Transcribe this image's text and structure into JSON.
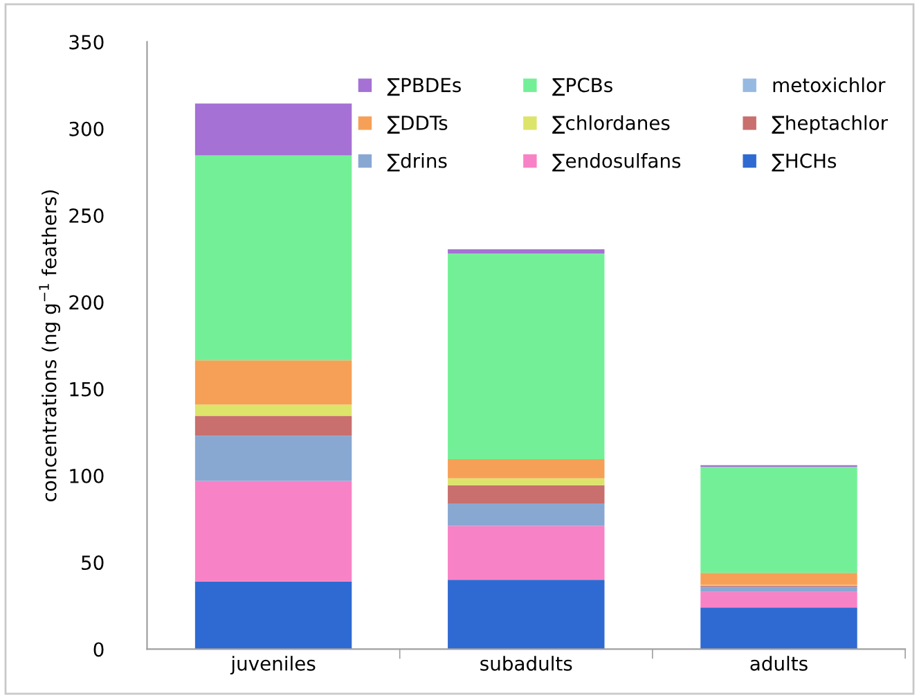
{
  "chart_data": {
    "type": "bar",
    "stacked": true,
    "ylabel": "concentrations (ng g$^{−1}$ feathers)",
    "categories": [
      "juveniles",
      "subadults",
      "adults"
    ],
    "ylim": [
      0,
      350
    ],
    "yticks": [
      0,
      50,
      100,
      150,
      200,
      250,
      300,
      350
    ],
    "grid": false,
    "legend": "top right",
    "series": [
      {
        "name": "∑HCHs",
        "color": "#2f6ad2",
        "values": [
          39,
          40,
          24
        ]
      },
      {
        "name": "∑endosulfans",
        "color": "#f882c6",
        "values": [
          58,
          31,
          9
        ]
      },
      {
        "name": "∑drins",
        "color": "#88a8d2",
        "values": [
          26,
          13,
          3
        ]
      },
      {
        "name": "∑heptachlor",
        "color": "#c96f6e",
        "values": [
          11.5,
          10.5,
          0.5
        ]
      },
      {
        "name": "∑chlordanes",
        "color": "#dde46a",
        "values": [
          6.5,
          4,
          0.5
        ]
      },
      {
        "name": "∑DDTs",
        "color": "#f6a057",
        "values": [
          25.5,
          11,
          7
        ]
      },
      {
        "name": "metoxichlor",
        "color": "#96b9e2",
        "values": [
          0,
          0,
          0
        ]
      },
      {
        "name": "∑PCBs",
        "color": "#73f097",
        "values": [
          118,
          118.5,
          61
        ]
      },
      {
        "name": "∑PBDEs",
        "color": "#a571d4",
        "values": [
          30,
          2.5,
          1
        ]
      }
    ]
  }
}
